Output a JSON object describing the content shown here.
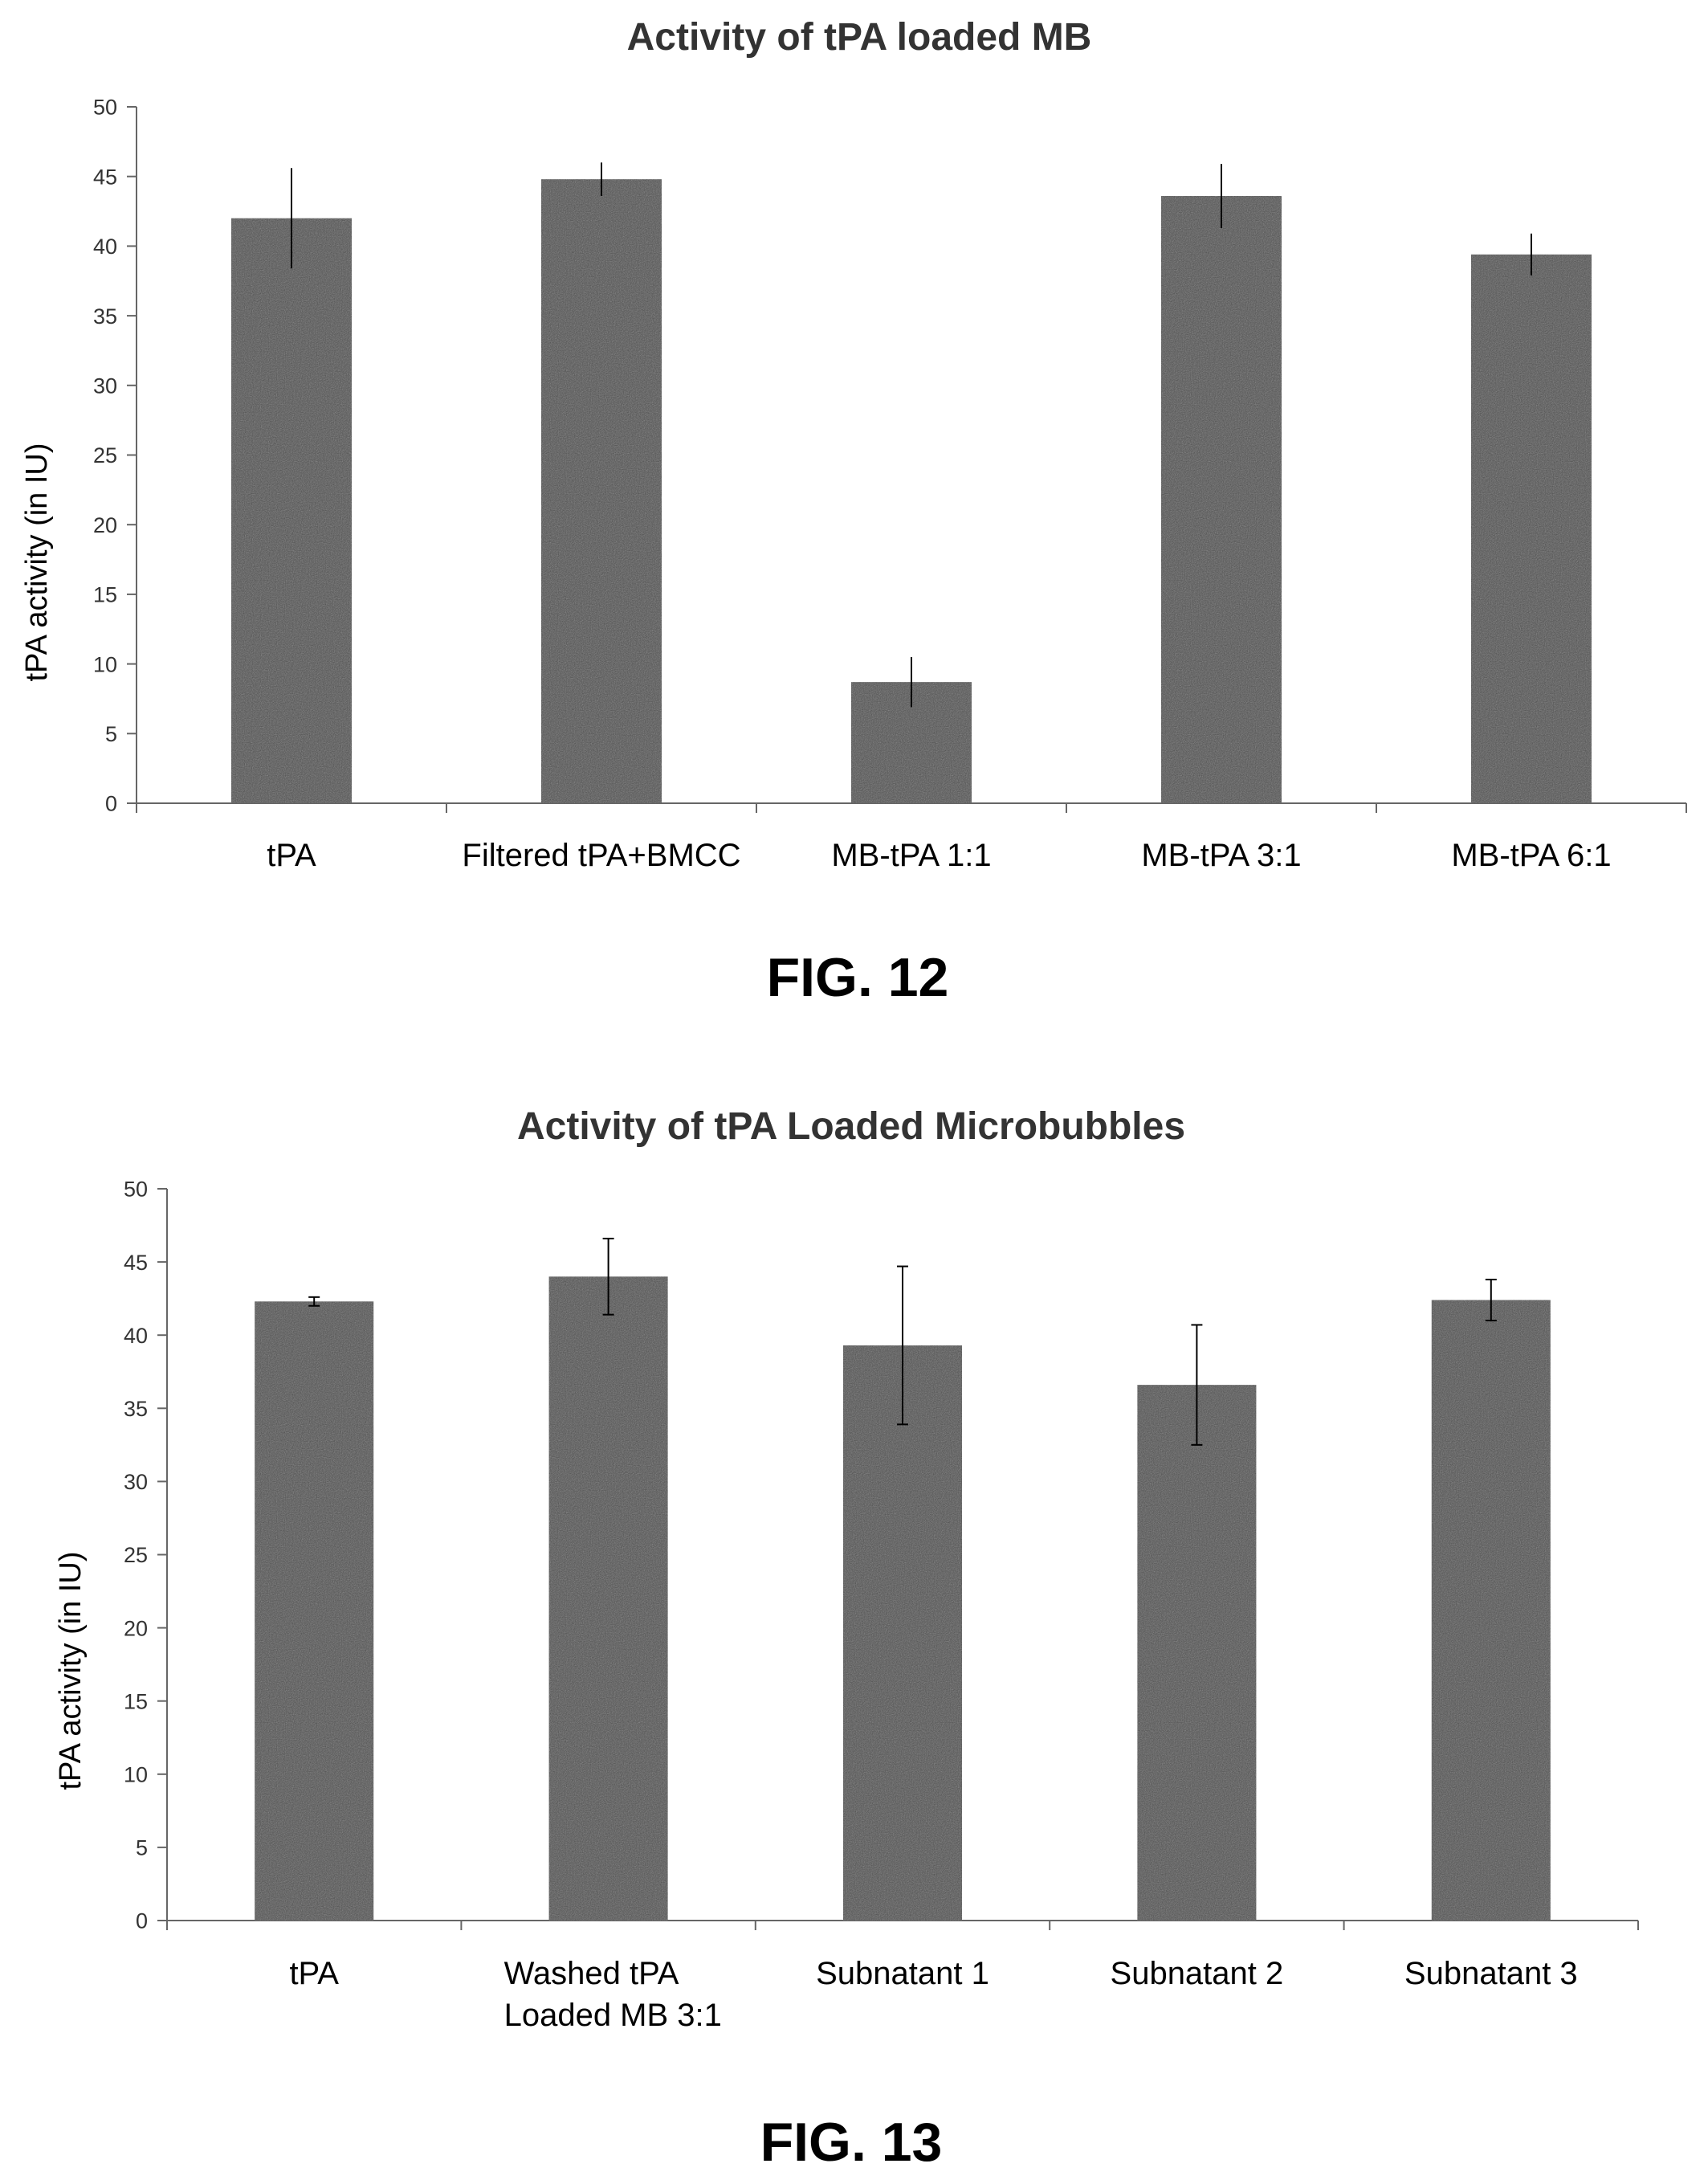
{
  "figures": [
    {
      "caption": "FIG. 12",
      "chart_data": {
        "type": "bar",
        "title": "Activity of tPA loaded MB",
        "xlabel": "",
        "ylabel": "tPA activity (in IU)",
        "ylim": [
          0,
          50
        ],
        "yticks": [
          0,
          5,
          10,
          15,
          20,
          25,
          30,
          35,
          40,
          45,
          50
        ],
        "grid": false,
        "bar_color": "#4d4d4d",
        "categories": [
          [
            "tPA"
          ],
          [
            "Filtered tPA+BMCC"
          ],
          [
            "MB-tPA 1:1"
          ],
          [
            "MB-tPA 3:1"
          ],
          [
            "MB-tPA 6:1"
          ]
        ],
        "values": [
          42,
          44.8,
          8.7,
          43.6,
          39.4
        ],
        "errors": [
          3.6,
          1.2,
          1.8,
          2.3,
          1.5
        ]
      }
    },
    {
      "caption": "FIG. 13",
      "chart_data": {
        "type": "bar",
        "title": "Activity of tPA Loaded Microbubbles",
        "xlabel": "",
        "ylabel": "tPA activity (in IU)",
        "ylim": [
          0,
          50
        ],
        "yticks": [
          0,
          5,
          10,
          15,
          20,
          25,
          30,
          35,
          40,
          45,
          50
        ],
        "grid": false,
        "bar_color": "#4d4d4d",
        "categories": [
          [
            "tPA"
          ],
          [
            "Washed tPA",
            "Loaded MB 3:1"
          ],
          [
            "Subnatant 1"
          ],
          [
            "Subnatant 2"
          ],
          [
            "Subnatant 3"
          ]
        ],
        "values": [
          42.3,
          44,
          39.3,
          36.6,
          42.4
        ],
        "errors": [
          0.3,
          2.6,
          5.4,
          4.1,
          1.4
        ]
      }
    }
  ]
}
